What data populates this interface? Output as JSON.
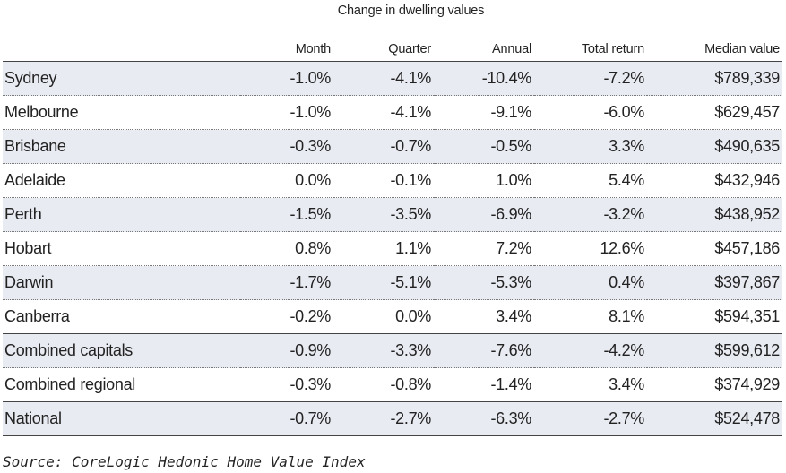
{
  "table": {
    "group_header": "Change in dwelling values",
    "columns": [
      "",
      "Month",
      "Quarter",
      "Annual",
      "Total return",
      "Median value"
    ],
    "rows": [
      {
        "name": "Sydney",
        "month": "-1.0%",
        "quarter": "-4.1%",
        "annual": "-10.4%",
        "total_return": "-7.2%",
        "median": "$789,339"
      },
      {
        "name": "Melbourne",
        "month": "-1.0%",
        "quarter": "-4.1%",
        "annual": "-9.1%",
        "total_return": "-6.0%",
        "median": "$629,457"
      },
      {
        "name": "Brisbane",
        "month": "-0.3%",
        "quarter": "-0.7%",
        "annual": "-0.5%",
        "total_return": "3.3%",
        "median": "$490,635"
      },
      {
        "name": "Adelaide",
        "month": "0.0%",
        "quarter": "-0.1%",
        "annual": "1.0%",
        "total_return": "5.4%",
        "median": "$432,946"
      },
      {
        "name": "Perth",
        "month": "-1.5%",
        "quarter": "-3.5%",
        "annual": "-6.9%",
        "total_return": "-3.2%",
        "median": "$438,952"
      },
      {
        "name": "Hobart",
        "month": "0.8%",
        "quarter": "1.1%",
        "annual": "7.2%",
        "total_return": "12.6%",
        "median": "$457,186"
      },
      {
        "name": "Darwin",
        "month": "-1.7%",
        "quarter": "-5.1%",
        "annual": "-5.3%",
        "total_return": "0.4%",
        "median": "$397,867"
      },
      {
        "name": "Canberra",
        "month": "-0.2%",
        "quarter": "0.0%",
        "annual": "3.4%",
        "total_return": "8.1%",
        "median": "$594,351"
      },
      {
        "name": "Combined capitals",
        "month": "-0.9%",
        "quarter": "-3.3%",
        "annual": "-7.6%",
        "total_return": "-4.2%",
        "median": "$599,612"
      },
      {
        "name": "Combined regional",
        "month": "-0.3%",
        "quarter": "-0.8%",
        "annual": "-1.4%",
        "total_return": "3.4%",
        "median": "$374,929"
      },
      {
        "name": "National",
        "month": "-0.7%",
        "quarter": "-2.7%",
        "annual": "-6.3%",
        "total_return": "-2.7%",
        "median": "$524,478"
      }
    ]
  },
  "source": "Source: CoreLogic Hedonic Home Value Index",
  "colors": {
    "row_shade": "#e8ebf2",
    "text": "#222222"
  }
}
